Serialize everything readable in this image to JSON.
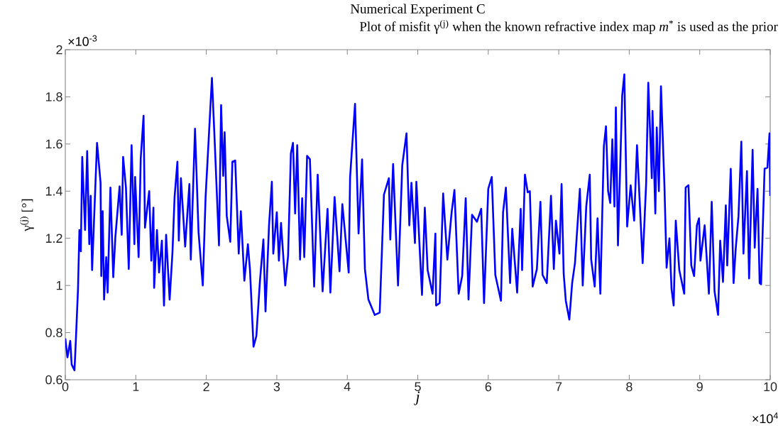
{
  "chart_data": {
    "type": "line",
    "title": "Numerical Experiment C",
    "subtitle": "Plot of misfit γ$^{(j)}$ when the known refractive index map *m*$^{*}$ is used as the prior",
    "xlabel": "j",
    "ylabel": "γ$^{(j)}$ [°]",
    "annotations": [
      "×10$^{-3}$",
      "×10$^{4}$"
    ],
    "xlim": [
      0,
      10
    ],
    "ylim": [
      0.6,
      2
    ],
    "xticks": [
      0,
      1,
      2,
      3,
      4,
      5,
      6,
      7,
      8,
      9,
      10
    ],
    "yticks": [
      0.6,
      0.8,
      1,
      1.2,
      1.4,
      1.6,
      1.8,
      2
    ],
    "marker": "none",
    "line_style": "solid",
    "x": [
      0,
      0.03,
      0.07,
      0.09,
      0.13,
      0.15,
      0.18,
      0.2,
      0.22,
      0.24,
      0.28,
      0.31,
      0.34,
      0.36,
      0.38,
      0.45,
      0.5,
      0.51,
      0.53,
      0.55,
      0.58,
      0.6,
      0.64,
      0.68,
      0.71,
      0.77,
      0.8,
      0.82,
      0.86,
      0.9,
      0.94,
      0.98,
      0.99,
      1.04,
      1.07,
      1.11,
      1.13,
      1.19,
      1.22,
      1.25,
      1.26,
      1.3,
      1.33,
      1.37,
      1.4,
      1.43,
      1.48,
      1.52,
      1.55,
      1.59,
      1.61,
      1.64,
      1.7,
      1.76,
      1.78,
      1.84,
      1.89,
      1.95,
      1.99,
      2.04,
      2.08,
      2.12,
      2.18,
      2.21,
      2.24,
      2.26,
      2.29,
      2.34,
      2.37,
      2.41,
      2.46,
      2.49,
      2.54,
      2.59,
      2.62,
      2.67,
      2.71,
      2.76,
      2.81,
      2.84,
      2.89,
      2.93,
      2.95,
      3.0,
      3.03,
      3.06,
      3.12,
      3.16,
      3.2,
      3.23,
      3.26,
      3.29,
      3.33,
      3.36,
      3.39,
      3.43,
      3.47,
      3.53,
      3.58,
      3.65,
      3.72,
      3.76,
      3.82,
      3.89,
      3.93,
      4.02,
      4.04,
      4.11,
      4.16,
      4.21,
      4.25,
      4.3,
      4.39,
      4.46,
      4.52,
      4.59,
      4.61,
      4.65,
      4.72,
      4.78,
      4.84,
      4.88,
      4.91,
      4.96,
      4.98,
      5.06,
      5.1,
      5.14,
      5.21,
      5.25,
      5.26,
      5.31,
      5.36,
      5.42,
      5.48,
      5.52,
      5.58,
      5.63,
      5.68,
      5.72,
      5.77,
      5.84,
      5.9,
      5.94,
      6.0,
      6.05,
      6.1,
      6.18,
      6.21,
      6.25,
      6.31,
      6.34,
      6.41,
      6.46,
      6.48,
      6.52,
      6.56,
      6.59,
      6.63,
      6.69,
      6.74,
      6.77,
      6.83,
      6.89,
      6.93,
      6.96,
      7.01,
      7.04,
      7.07,
      7.1,
      7.15,
      7.19,
      7.23,
      7.3,
      7.34,
      7.39,
      7.44,
      7.46,
      7.51,
      7.55,
      7.59,
      7.64,
      7.67,
      7.7,
      7.73,
      7.76,
      7.79,
      7.81,
      7.84,
      7.9,
      7.93,
      7.97,
      8.02,
      8.07,
      8.11,
      8.19,
      8.24,
      8.27,
      8.32,
      8.33,
      8.37,
      8.39,
      8.42,
      8.45,
      8.5,
      8.53,
      8.57,
      8.6,
      8.63,
      8.66,
      8.71,
      8.78,
      8.8,
      8.84,
      8.88,
      8.92,
      8.96,
      8.99,
      9.01,
      9.07,
      9.13,
      9.17,
      9.21,
      9.26,
      9.29,
      9.33,
      9.37,
      9.39,
      9.44,
      9.48,
      9.51,
      9.55,
      9.59,
      9.62,
      9.67,
      9.7,
      9.75,
      9.78,
      9.82,
      9.85,
      9.87,
      9.92,
      9.96,
      9.99,
      10.0
    ],
    "series": [
      {
        "color": "#0000ff",
        "values": [
          0.775,
          0.695,
          0.765,
          0.665,
          0.64,
          0.77,
          0.985,
          1.235,
          1.145,
          1.545,
          1.235,
          1.57,
          1.175,
          1.38,
          1.065,
          1.605,
          1.435,
          1.04,
          1.315,
          0.94,
          1.12,
          0.97,
          1.415,
          1.035,
          1.205,
          1.42,
          1.215,
          1.545,
          1.415,
          1.07,
          1.595,
          1.175,
          1.46,
          1.12,
          1.54,
          1.72,
          1.245,
          1.4,
          1.105,
          1.33,
          0.99,
          1.235,
          1.055,
          1.19,
          0.915,
          1.215,
          0.94,
          1.14,
          1.375,
          1.525,
          1.19,
          1.455,
          1.165,
          1.43,
          1.11,
          1.665,
          1.225,
          1.0,
          1.375,
          1.655,
          1.88,
          1.605,
          1.17,
          1.765,
          1.465,
          1.65,
          1.295,
          1.185,
          1.525,
          1.53,
          1.135,
          1.315,
          1.02,
          1.175,
          1.065,
          0.74,
          0.785,
          1.015,
          1.195,
          0.89,
          1.255,
          1.44,
          1.135,
          1.31,
          1.105,
          1.265,
          1.0,
          1.125,
          1.56,
          1.605,
          1.305,
          1.595,
          1.11,
          1.37,
          1.12,
          1.55,
          1.535,
          0.995,
          1.47,
          0.975,
          1.325,
          0.97,
          1.375,
          1.06,
          1.345,
          1.055,
          1.46,
          1.77,
          1.22,
          1.535,
          1.07,
          0.94,
          0.875,
          0.885,
          1.385,
          1.455,
          1.195,
          1.515,
          1.0,
          1.51,
          1.645,
          1.255,
          1.435,
          1.18,
          1.44,
          0.96,
          1.33,
          1.065,
          0.965,
          1.22,
          0.915,
          0.925,
          1.39,
          1.11,
          1.31,
          1.405,
          0.965,
          1.04,
          1.37,
          0.94,
          1.3,
          1.27,
          1.325,
          0.925,
          1.41,
          1.46,
          1.045,
          0.935,
          1.31,
          1.415,
          1.01,
          1.24,
          0.97,
          1.325,
          1.065,
          1.47,
          1.395,
          1.4,
          0.995,
          1.07,
          1.355,
          1.045,
          1.01,
          1.38,
          1.07,
          1.275,
          1.135,
          1.43,
          1.05,
          0.935,
          0.855,
          1.01,
          1.095,
          1.41,
          1.0,
          1.335,
          1.47,
          1.11,
          0.995,
          1.285,
          0.965,
          1.59,
          1.675,
          1.4,
          1.35,
          1.62,
          1.335,
          1.755,
          1.17,
          1.805,
          1.895,
          1.25,
          1.425,
          1.275,
          1.595,
          1.095,
          1.435,
          1.86,
          1.455,
          1.74,
          1.305,
          1.67,
          1.4,
          1.845,
          1.415,
          1.075,
          1.2,
          0.985,
          0.915,
          1.275,
          1.065,
          0.965,
          1.415,
          1.425,
          1.085,
          1.04,
          1.255,
          1.285,
          1.105,
          1.255,
          0.965,
          1.355,
          0.975,
          0.875,
          1.19,
          1.015,
          1.34,
          1.085,
          1.495,
          1.01,
          1.155,
          1.295,
          1.61,
          1.135,
          1.485,
          1.03,
          1.575,
          1.16,
          1.41,
          1.01,
          1.005,
          1.495,
          1.5,
          1.645,
          1.38
        ]
      }
    ]
  }
}
